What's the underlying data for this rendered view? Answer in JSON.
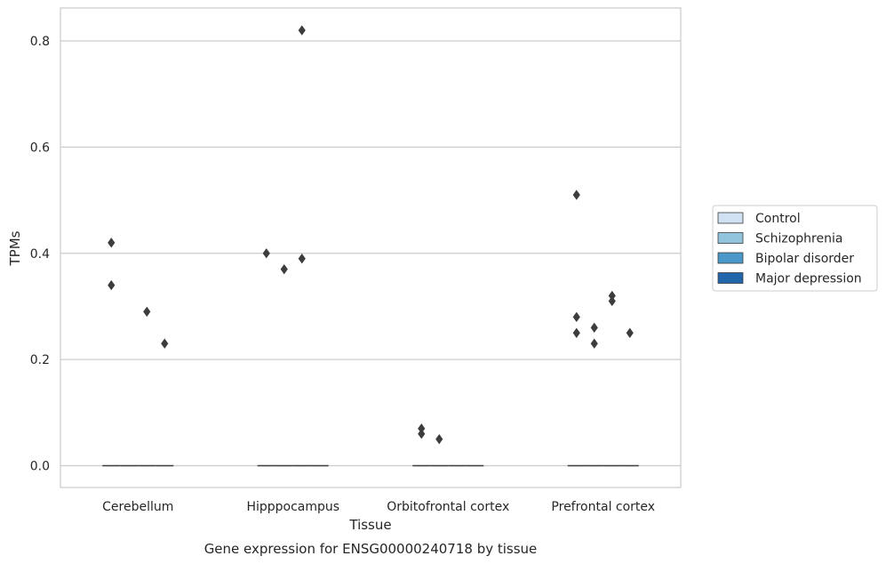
{
  "chart_data": {
    "type": "box",
    "caption": "Gene expression for ENSG00000240718 by tissue",
    "xlabel": "Tissue",
    "ylabel": "TPMs",
    "ylim": [
      -0.041,
      0.862
    ],
    "yticks": [
      0.0,
      0.2,
      0.4,
      0.6,
      0.8
    ],
    "ytick_labels": [
      "0.0",
      "0.2",
      "0.4",
      "0.6",
      "0.8"
    ],
    "grid": "horizontal",
    "legend_position": "right",
    "categories": [
      "Cerebellum",
      "Hipppocampus",
      "Orbitofrontal cortex",
      "Prefrontal cortex"
    ],
    "series": [
      {
        "name": "Control",
        "color": "#cfe1f2",
        "median": [
          0,
          0,
          0,
          0
        ],
        "outliers": [
          [
            0.42,
            0.34
          ],
          [
            0.4
          ],
          [
            0.07,
            0.06
          ],
          [
            0.51,
            0.28,
            0.25
          ]
        ]
      },
      {
        "name": "Schizophrenia",
        "color": "#93c4de",
        "median": [
          0,
          0,
          0,
          0
        ],
        "outliers": [
          [],
          [
            0.37
          ],
          [
            0.05
          ],
          [
            0.26,
            0.23
          ]
        ]
      },
      {
        "name": "Bipolar disorder",
        "color": "#4a98c9",
        "median": [
          0,
          0,
          0,
          0
        ],
        "outliers": [
          [
            0.29
          ],
          [
            0.82,
            0.39
          ],
          [],
          [
            0.32,
            0.31
          ]
        ]
      },
      {
        "name": "Major depression",
        "color": "#2165ab",
        "median": [
          0,
          0,
          0,
          0
        ],
        "outliers": [
          [
            0.23
          ],
          [],
          [],
          [
            0.25
          ]
        ]
      }
    ]
  }
}
